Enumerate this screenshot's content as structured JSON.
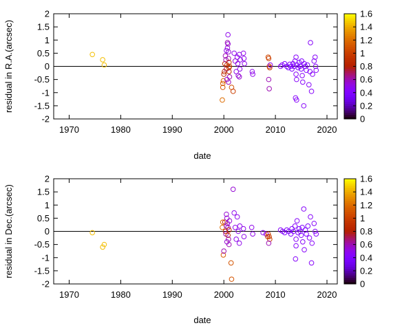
{
  "chart_data": [
    {
      "type": "scatter",
      "title": "",
      "xlabel": "date",
      "ylabel": "residual in R.A.(arcsec)",
      "xlim": [
        1967,
        2022
      ],
      "ylim": [
        -2,
        2
      ],
      "xticks": [
        1970,
        1980,
        1990,
        2000,
        2010,
        2020
      ],
      "yticks": [
        -2,
        -1.5,
        -1,
        -0.5,
        0,
        0.5,
        1,
        1.5,
        2
      ],
      "zero_line": true,
      "colorbar": {
        "min": 0,
        "max": 1.6,
        "ticks": [
          0,
          0.2,
          0.4,
          0.6,
          0.8,
          1,
          1.2,
          1.4,
          1.6
        ],
        "label": ""
      },
      "points": [
        {
          "x": 1974.5,
          "y": 0.45,
          "c": 1.45
        },
        {
          "x": 1976.5,
          "y": 0.25,
          "c": 1.45
        },
        {
          "x": 1976.8,
          "y": 0.05,
          "c": 1.45
        },
        {
          "x": 1999.7,
          "y": -1.28,
          "c": 1.2
        },
        {
          "x": 1999.8,
          "y": -0.65,
          "c": 1.15
        },
        {
          "x": 1999.9,
          "y": -0.55,
          "c": 1.15
        },
        {
          "x": 1999.8,
          "y": -0.8,
          "c": 1.1
        },
        {
          "x": 2000.0,
          "y": -0.3,
          "c": 0.85
        },
        {
          "x": 2000.1,
          "y": -0.2,
          "c": 0.9
        },
        {
          "x": 2000.2,
          "y": 0.1,
          "c": 0.85
        },
        {
          "x": 2000.3,
          "y": 0.4,
          "c": 0.6
        },
        {
          "x": 2000.4,
          "y": 0.25,
          "c": 0.6
        },
        {
          "x": 2000.5,
          "y": -0.1,
          "c": 0.7
        },
        {
          "x": 2000.6,
          "y": 0.05,
          "c": 0.95
        },
        {
          "x": 2000.7,
          "y": 0.9,
          "c": 0.6
        },
        {
          "x": 2000.7,
          "y": 0.7,
          "c": 0.55
        },
        {
          "x": 2000.8,
          "y": 1.2,
          "c": 0.5
        },
        {
          "x": 2000.8,
          "y": 0.85,
          "c": 0.55
        },
        {
          "x": 2000.9,
          "y": 0.55,
          "c": 0.55
        },
        {
          "x": 2000.9,
          "y": 0.3,
          "c": 0.6
        },
        {
          "x": 2001.0,
          "y": 0.15,
          "c": 0.9
        },
        {
          "x": 2001.0,
          "y": -0.05,
          "c": 0.95
        },
        {
          "x": 2001.0,
          "y": -0.2,
          "c": 0.85
        },
        {
          "x": 2001.1,
          "y": -0.4,
          "c": 0.6
        },
        {
          "x": 2001.1,
          "y": 0.0,
          "c": 1.0
        },
        {
          "x": 2000.9,
          "y": -0.6,
          "c": 0.6
        },
        {
          "x": 2000.6,
          "y": -0.5,
          "c": 0.55
        },
        {
          "x": 2000.5,
          "y": 0.6,
          "c": 0.5
        },
        {
          "x": 2001.5,
          "y": -0.8,
          "c": 1.1
        },
        {
          "x": 2001.8,
          "y": -0.95,
          "c": 1.0
        },
        {
          "x": 2002.0,
          "y": 0.5,
          "c": 0.5
        },
        {
          "x": 2002.2,
          "y": 0.2,
          "c": 0.55
        },
        {
          "x": 2002.4,
          "y": -0.2,
          "c": 0.5
        },
        {
          "x": 2002.6,
          "y": 0.35,
          "c": 0.5
        },
        {
          "x": 2002.7,
          "y": 0.1,
          "c": 0.5
        },
        {
          "x": 2002.8,
          "y": -0.35,
          "c": 0.55
        },
        {
          "x": 2003.0,
          "y": 0.45,
          "c": 0.5
        },
        {
          "x": 2003.1,
          "y": -0.1,
          "c": 0.5
        },
        {
          "x": 2003.2,
          "y": 0.25,
          "c": 0.5
        },
        {
          "x": 2003.0,
          "y": -0.4,
          "c": 0.55
        },
        {
          "x": 2003.8,
          "y": 0.5,
          "c": 0.5
        },
        {
          "x": 2003.9,
          "y": 0.3,
          "c": 0.5
        },
        {
          "x": 2004.0,
          "y": 0.1,
          "c": 0.5
        },
        {
          "x": 2005.5,
          "y": -0.2,
          "c": 0.5
        },
        {
          "x": 2005.6,
          "y": -0.3,
          "c": 0.5
        },
        {
          "x": 2008.6,
          "y": 0.35,
          "c": 1.05
        },
        {
          "x": 2008.7,
          "y": 0.3,
          "c": 1.0
        },
        {
          "x": 2008.8,
          "y": 0.0,
          "c": 1.0
        },
        {
          "x": 2008.9,
          "y": -0.05,
          "c": 0.95
        },
        {
          "x": 2008.7,
          "y": -0.5,
          "c": 0.6
        },
        {
          "x": 2008.8,
          "y": -0.85,
          "c": 0.6
        },
        {
          "x": 2009.0,
          "y": 0.05,
          "c": 0.5
        },
        {
          "x": 2011.0,
          "y": 0.0,
          "c": 0.45
        },
        {
          "x": 2011.3,
          "y": 0.05,
          "c": 0.45
        },
        {
          "x": 2011.8,
          "y": 0.1,
          "c": 0.4
        },
        {
          "x": 2012.2,
          "y": 0.0,
          "c": 0.4
        },
        {
          "x": 2012.5,
          "y": -0.05,
          "c": 0.4
        },
        {
          "x": 2012.8,
          "y": 0.08,
          "c": 0.4
        },
        {
          "x": 2013.0,
          "y": 0.0,
          "c": 0.4
        },
        {
          "x": 2013.2,
          "y": -0.1,
          "c": 0.4
        },
        {
          "x": 2013.4,
          "y": 0.1,
          "c": 0.4
        },
        {
          "x": 2013.6,
          "y": 0.0,
          "c": 0.4
        },
        {
          "x": 2013.8,
          "y": 0.2,
          "c": 0.45
        },
        {
          "x": 2014.0,
          "y": 0.35,
          "c": 0.45
        },
        {
          "x": 2014.0,
          "y": -0.3,
          "c": 0.45
        },
        {
          "x": 2014.1,
          "y": -0.5,
          "c": 0.45
        },
        {
          "x": 2013.9,
          "y": -1.2,
          "c": 0.45
        },
        {
          "x": 2014.1,
          "y": -1.28,
          "c": 0.45
        },
        {
          "x": 2014.2,
          "y": 0.05,
          "c": 0.4
        },
        {
          "x": 2014.4,
          "y": -0.05,
          "c": 0.4
        },
        {
          "x": 2014.6,
          "y": 0.15,
          "c": 0.4
        },
        {
          "x": 2014.8,
          "y": 0.0,
          "c": 0.4
        },
        {
          "x": 2015.0,
          "y": -0.1,
          "c": 0.4
        },
        {
          "x": 2015.1,
          "y": 0.2,
          "c": 0.4
        },
        {
          "x": 2015.2,
          "y": -0.35,
          "c": 0.45
        },
        {
          "x": 2015.3,
          "y": -0.6,
          "c": 0.45
        },
        {
          "x": 2015.5,
          "y": -1.5,
          "c": 0.45
        },
        {
          "x": 2015.6,
          "y": 0.1,
          "c": 0.4
        },
        {
          "x": 2015.8,
          "y": 0.0,
          "c": 0.4
        },
        {
          "x": 2016.0,
          "y": -0.15,
          "c": 0.4
        },
        {
          "x": 2016.2,
          "y": 0.05,
          "c": 0.4
        },
        {
          "x": 2016.5,
          "y": -0.7,
          "c": 0.45
        },
        {
          "x": 2016.7,
          "y": -0.2,
          "c": 0.45
        },
        {
          "x": 2016.8,
          "y": 0.9,
          "c": 0.45
        },
        {
          "x": 2017.0,
          "y": -0.95,
          "c": 0.45
        },
        {
          "x": 2017.2,
          "y": -0.3,
          "c": 0.45
        },
        {
          "x": 2017.5,
          "y": 0.2,
          "c": 0.45
        },
        {
          "x": 2017.7,
          "y": 0.35,
          "c": 0.45
        },
        {
          "x": 2017.8,
          "y": 0.0,
          "c": 0.45
        },
        {
          "x": 2017.9,
          "y": -0.15,
          "c": 0.45
        }
      ]
    },
    {
      "type": "scatter",
      "title": "",
      "xlabel": "date",
      "ylabel": "residual in Dec.(arcsec)",
      "xlim": [
        1967,
        2022
      ],
      "ylim": [
        -2,
        2
      ],
      "xticks": [
        1970,
        1980,
        1990,
        2000,
        2010,
        2020
      ],
      "yticks": [
        -2,
        -1.5,
        -1,
        -0.5,
        0,
        0.5,
        1,
        1.5,
        2
      ],
      "zero_line": true,
      "colorbar": {
        "min": 0,
        "max": 1.6,
        "ticks": [
          0,
          0.2,
          0.4,
          0.6,
          0.8,
          1,
          1.2,
          1.4,
          1.6
        ],
        "label": ""
      },
      "points": [
        {
          "x": 1974.5,
          "y": -0.05,
          "c": 1.45
        },
        {
          "x": 1976.5,
          "y": -0.6,
          "c": 1.45
        },
        {
          "x": 1976.8,
          "y": -0.5,
          "c": 1.45
        },
        {
          "x": 1999.7,
          "y": 0.15,
          "c": 1.2
        },
        {
          "x": 1999.8,
          "y": 0.35,
          "c": 1.15
        },
        {
          "x": 1999.9,
          "y": -0.9,
          "c": 1.15
        },
        {
          "x": 2000.0,
          "y": -0.75,
          "c": 0.6
        },
        {
          "x": 2000.2,
          "y": 0.35,
          "c": 0.9
        },
        {
          "x": 2000.3,
          "y": 0.0,
          "c": 0.85
        },
        {
          "x": 2000.4,
          "y": -0.1,
          "c": 0.6
        },
        {
          "x": 2000.5,
          "y": 0.2,
          "c": 0.6
        },
        {
          "x": 2000.6,
          "y": 0.5,
          "c": 0.55
        },
        {
          "x": 2000.7,
          "y": 0.3,
          "c": 0.55
        },
        {
          "x": 2000.8,
          "y": 0.15,
          "c": 0.6
        },
        {
          "x": 2000.8,
          "y": -0.15,
          "c": 0.85
        },
        {
          "x": 2000.9,
          "y": -0.3,
          "c": 0.6
        },
        {
          "x": 2001.0,
          "y": 0.05,
          "c": 0.9
        },
        {
          "x": 2001.0,
          "y": -0.5,
          "c": 0.6
        },
        {
          "x": 2001.1,
          "y": 0.4,
          "c": 0.55
        },
        {
          "x": 2000.6,
          "y": -0.4,
          "c": 0.55
        },
        {
          "x": 2000.5,
          "y": 0.65,
          "c": 0.55
        },
        {
          "x": 2001.4,
          "y": -1.2,
          "c": 1.1
        },
        {
          "x": 2001.5,
          "y": -1.82,
          "c": 1.1
        },
        {
          "x": 2001.8,
          "y": 1.6,
          "c": 0.55
        },
        {
          "x": 2002.0,
          "y": 0.7,
          "c": 0.5
        },
        {
          "x": 2002.2,
          "y": 0.15,
          "c": 0.5
        },
        {
          "x": 2002.4,
          "y": -0.3,
          "c": 0.5
        },
        {
          "x": 2002.6,
          "y": 0.55,
          "c": 0.5
        },
        {
          "x": 2002.8,
          "y": 0.0,
          "c": 0.5
        },
        {
          "x": 2003.0,
          "y": -0.45,
          "c": 0.5
        },
        {
          "x": 2003.1,
          "y": 0.2,
          "c": 0.5
        },
        {
          "x": 2003.8,
          "y": 0.1,
          "c": 0.5
        },
        {
          "x": 2003.9,
          "y": -0.2,
          "c": 0.5
        },
        {
          "x": 2005.4,
          "y": 0.15,
          "c": 0.5
        },
        {
          "x": 2005.6,
          "y": -0.1,
          "c": 0.5
        },
        {
          "x": 2007.6,
          "y": -0.05,
          "c": 0.5
        },
        {
          "x": 2008.2,
          "y": -0.1,
          "c": 0.5
        },
        {
          "x": 2008.6,
          "y": -0.1,
          "c": 1.05
        },
        {
          "x": 2008.8,
          "y": -0.2,
          "c": 1.0
        },
        {
          "x": 2008.9,
          "y": -0.3,
          "c": 1.0
        },
        {
          "x": 2008.7,
          "y": -0.45,
          "c": 0.6
        },
        {
          "x": 2008.5,
          "y": -0.2,
          "c": 0.95
        },
        {
          "x": 2011.0,
          "y": 0.05,
          "c": 0.45
        },
        {
          "x": 2011.4,
          "y": 0.0,
          "c": 0.45
        },
        {
          "x": 2011.8,
          "y": -0.05,
          "c": 0.4
        },
        {
          "x": 2012.2,
          "y": 0.05,
          "c": 0.4
        },
        {
          "x": 2012.6,
          "y": 0.0,
          "c": 0.4
        },
        {
          "x": 2013.0,
          "y": -0.1,
          "c": 0.4
        },
        {
          "x": 2013.2,
          "y": 0.1,
          "c": 0.4
        },
        {
          "x": 2013.5,
          "y": 0.0,
          "c": 0.4
        },
        {
          "x": 2013.8,
          "y": 0.2,
          "c": 0.45
        },
        {
          "x": 2014.0,
          "y": -0.3,
          "c": 0.45
        },
        {
          "x": 2014.0,
          "y": -0.55,
          "c": 0.45
        },
        {
          "x": 2013.9,
          "y": -1.05,
          "c": 0.45
        },
        {
          "x": 2014.2,
          "y": 0.4,
          "c": 0.45
        },
        {
          "x": 2014.4,
          "y": -0.05,
          "c": 0.4
        },
        {
          "x": 2014.6,
          "y": 0.1,
          "c": 0.4
        },
        {
          "x": 2014.8,
          "y": 0.0,
          "c": 0.4
        },
        {
          "x": 2015.0,
          "y": -0.15,
          "c": 0.4
        },
        {
          "x": 2015.2,
          "y": 0.15,
          "c": 0.4
        },
        {
          "x": 2015.3,
          "y": -0.4,
          "c": 0.45
        },
        {
          "x": 2015.5,
          "y": 0.85,
          "c": 0.45
        },
        {
          "x": 2015.6,
          "y": -0.7,
          "c": 0.45
        },
        {
          "x": 2015.8,
          "y": 0.05,
          "c": 0.4
        },
        {
          "x": 2016.0,
          "y": -0.1,
          "c": 0.4
        },
        {
          "x": 2016.3,
          "y": 0.2,
          "c": 0.4
        },
        {
          "x": 2016.6,
          "y": -0.25,
          "c": 0.45
        },
        {
          "x": 2016.8,
          "y": 0.55,
          "c": 0.45
        },
        {
          "x": 2017.0,
          "y": -1.2,
          "c": 0.45
        },
        {
          "x": 2017.1,
          "y": -0.45,
          "c": 0.45
        },
        {
          "x": 2017.5,
          "y": 0.3,
          "c": 0.45
        },
        {
          "x": 2017.7,
          "y": 0.0,
          "c": 0.45
        },
        {
          "x": 2017.9,
          "y": -0.1,
          "c": 0.45
        }
      ]
    }
  ]
}
